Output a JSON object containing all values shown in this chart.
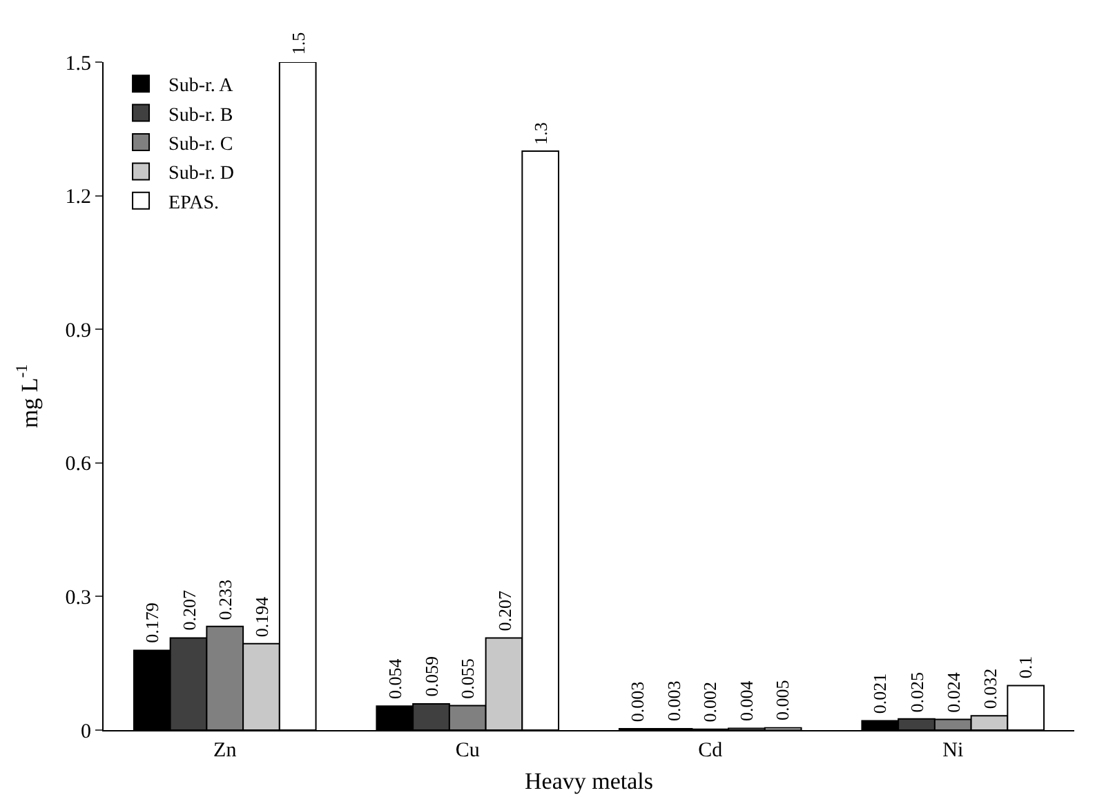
{
  "chart_data": {
    "type": "bar",
    "xlabel": "Heavy metals",
    "ylabel": "mg L$^{-1}$",
    "categories": [
      "Zn",
      "Cu",
      "Cd",
      "Ni"
    ],
    "series": [
      {
        "name": "Sub-r. A",
        "color": "#000000",
        "values": [
          0.179,
          0.054,
          0.003,
          0.021
        ]
      },
      {
        "name": "Sub-r. B",
        "color": "#404040",
        "values": [
          0.207,
          0.059,
          0.003,
          0.025
        ]
      },
      {
        "name": "Sub-r. C",
        "color": "#808080",
        "values": [
          0.233,
          0.055,
          0.002,
          0.024
        ]
      },
      {
        "name": "Sub-r. D",
        "color": "#c8c8c8",
        "values": [
          0.194,
          0.207,
          0.004,
          0.032
        ]
      },
      {
        "name": "EPAS.",
        "color": "#ffffff",
        "values": [
          1.5,
          1.3,
          0.005,
          0.1
        ]
      }
    ],
    "ylim": [
      0,
      1.5
    ],
    "yticks": [
      0,
      0.3,
      0.6,
      0.9,
      1.2,
      1.5
    ],
    "data_labels": true,
    "legend": "top left"
  }
}
